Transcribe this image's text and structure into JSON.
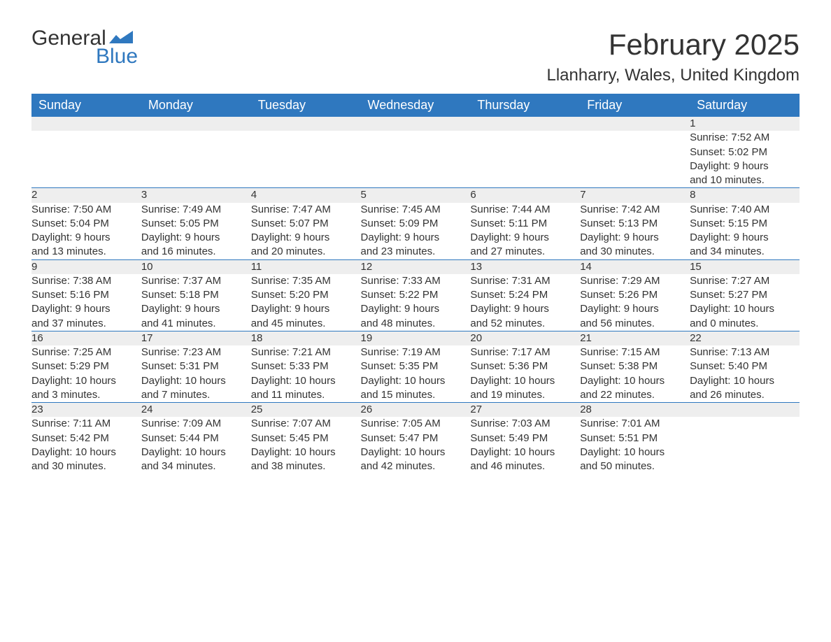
{
  "brand": {
    "word1": "General",
    "word2": "Blue",
    "text_color": "#333333",
    "accent_color": "#2f78bf"
  },
  "title": "February 2025",
  "location": "Llanharry, Wales, United Kingdom",
  "colors": {
    "header_bg": "#2f78bf",
    "header_text": "#ffffff",
    "daynum_bg": "#eeeeee",
    "body_text": "#333333",
    "rule": "#2f78bf",
    "page_bg": "#ffffff"
  },
  "fonts": {
    "title_size_pt": 32,
    "location_size_pt": 18,
    "header_size_pt": 14,
    "body_size_pt": 11
  },
  "day_headers": [
    "Sunday",
    "Monday",
    "Tuesday",
    "Wednesday",
    "Thursday",
    "Friday",
    "Saturday"
  ],
  "weeks": [
    [
      null,
      null,
      null,
      null,
      null,
      null,
      {
        "n": "1",
        "sunrise": "Sunrise: 7:52 AM",
        "sunset": "Sunset: 5:02 PM",
        "day1": "Daylight: 9 hours",
        "day2": "and 10 minutes."
      }
    ],
    [
      {
        "n": "2",
        "sunrise": "Sunrise: 7:50 AM",
        "sunset": "Sunset: 5:04 PM",
        "day1": "Daylight: 9 hours",
        "day2": "and 13 minutes."
      },
      {
        "n": "3",
        "sunrise": "Sunrise: 7:49 AM",
        "sunset": "Sunset: 5:05 PM",
        "day1": "Daylight: 9 hours",
        "day2": "and 16 minutes."
      },
      {
        "n": "4",
        "sunrise": "Sunrise: 7:47 AM",
        "sunset": "Sunset: 5:07 PM",
        "day1": "Daylight: 9 hours",
        "day2": "and 20 minutes."
      },
      {
        "n": "5",
        "sunrise": "Sunrise: 7:45 AM",
        "sunset": "Sunset: 5:09 PM",
        "day1": "Daylight: 9 hours",
        "day2": "and 23 minutes."
      },
      {
        "n": "6",
        "sunrise": "Sunrise: 7:44 AM",
        "sunset": "Sunset: 5:11 PM",
        "day1": "Daylight: 9 hours",
        "day2": "and 27 minutes."
      },
      {
        "n": "7",
        "sunrise": "Sunrise: 7:42 AM",
        "sunset": "Sunset: 5:13 PM",
        "day1": "Daylight: 9 hours",
        "day2": "and 30 minutes."
      },
      {
        "n": "8",
        "sunrise": "Sunrise: 7:40 AM",
        "sunset": "Sunset: 5:15 PM",
        "day1": "Daylight: 9 hours",
        "day2": "and 34 minutes."
      }
    ],
    [
      {
        "n": "9",
        "sunrise": "Sunrise: 7:38 AM",
        "sunset": "Sunset: 5:16 PM",
        "day1": "Daylight: 9 hours",
        "day2": "and 37 minutes."
      },
      {
        "n": "10",
        "sunrise": "Sunrise: 7:37 AM",
        "sunset": "Sunset: 5:18 PM",
        "day1": "Daylight: 9 hours",
        "day2": "and 41 minutes."
      },
      {
        "n": "11",
        "sunrise": "Sunrise: 7:35 AM",
        "sunset": "Sunset: 5:20 PM",
        "day1": "Daylight: 9 hours",
        "day2": "and 45 minutes."
      },
      {
        "n": "12",
        "sunrise": "Sunrise: 7:33 AM",
        "sunset": "Sunset: 5:22 PM",
        "day1": "Daylight: 9 hours",
        "day2": "and 48 minutes."
      },
      {
        "n": "13",
        "sunrise": "Sunrise: 7:31 AM",
        "sunset": "Sunset: 5:24 PM",
        "day1": "Daylight: 9 hours",
        "day2": "and 52 minutes."
      },
      {
        "n": "14",
        "sunrise": "Sunrise: 7:29 AM",
        "sunset": "Sunset: 5:26 PM",
        "day1": "Daylight: 9 hours",
        "day2": "and 56 minutes."
      },
      {
        "n": "15",
        "sunrise": "Sunrise: 7:27 AM",
        "sunset": "Sunset: 5:27 PM",
        "day1": "Daylight: 10 hours",
        "day2": "and 0 minutes."
      }
    ],
    [
      {
        "n": "16",
        "sunrise": "Sunrise: 7:25 AM",
        "sunset": "Sunset: 5:29 PM",
        "day1": "Daylight: 10 hours",
        "day2": "and 3 minutes."
      },
      {
        "n": "17",
        "sunrise": "Sunrise: 7:23 AM",
        "sunset": "Sunset: 5:31 PM",
        "day1": "Daylight: 10 hours",
        "day2": "and 7 minutes."
      },
      {
        "n": "18",
        "sunrise": "Sunrise: 7:21 AM",
        "sunset": "Sunset: 5:33 PM",
        "day1": "Daylight: 10 hours",
        "day2": "and 11 minutes."
      },
      {
        "n": "19",
        "sunrise": "Sunrise: 7:19 AM",
        "sunset": "Sunset: 5:35 PM",
        "day1": "Daylight: 10 hours",
        "day2": "and 15 minutes."
      },
      {
        "n": "20",
        "sunrise": "Sunrise: 7:17 AM",
        "sunset": "Sunset: 5:36 PM",
        "day1": "Daylight: 10 hours",
        "day2": "and 19 minutes."
      },
      {
        "n": "21",
        "sunrise": "Sunrise: 7:15 AM",
        "sunset": "Sunset: 5:38 PM",
        "day1": "Daylight: 10 hours",
        "day2": "and 22 minutes."
      },
      {
        "n": "22",
        "sunrise": "Sunrise: 7:13 AM",
        "sunset": "Sunset: 5:40 PM",
        "day1": "Daylight: 10 hours",
        "day2": "and 26 minutes."
      }
    ],
    [
      {
        "n": "23",
        "sunrise": "Sunrise: 7:11 AM",
        "sunset": "Sunset: 5:42 PM",
        "day1": "Daylight: 10 hours",
        "day2": "and 30 minutes."
      },
      {
        "n": "24",
        "sunrise": "Sunrise: 7:09 AM",
        "sunset": "Sunset: 5:44 PM",
        "day1": "Daylight: 10 hours",
        "day2": "and 34 minutes."
      },
      {
        "n": "25",
        "sunrise": "Sunrise: 7:07 AM",
        "sunset": "Sunset: 5:45 PM",
        "day1": "Daylight: 10 hours",
        "day2": "and 38 minutes."
      },
      {
        "n": "26",
        "sunrise": "Sunrise: 7:05 AM",
        "sunset": "Sunset: 5:47 PM",
        "day1": "Daylight: 10 hours",
        "day2": "and 42 minutes."
      },
      {
        "n": "27",
        "sunrise": "Sunrise: 7:03 AM",
        "sunset": "Sunset: 5:49 PM",
        "day1": "Daylight: 10 hours",
        "day2": "and 46 minutes."
      },
      {
        "n": "28",
        "sunrise": "Sunrise: 7:01 AM",
        "sunset": "Sunset: 5:51 PM",
        "day1": "Daylight: 10 hours",
        "day2": "and 50 minutes."
      },
      null
    ]
  ]
}
